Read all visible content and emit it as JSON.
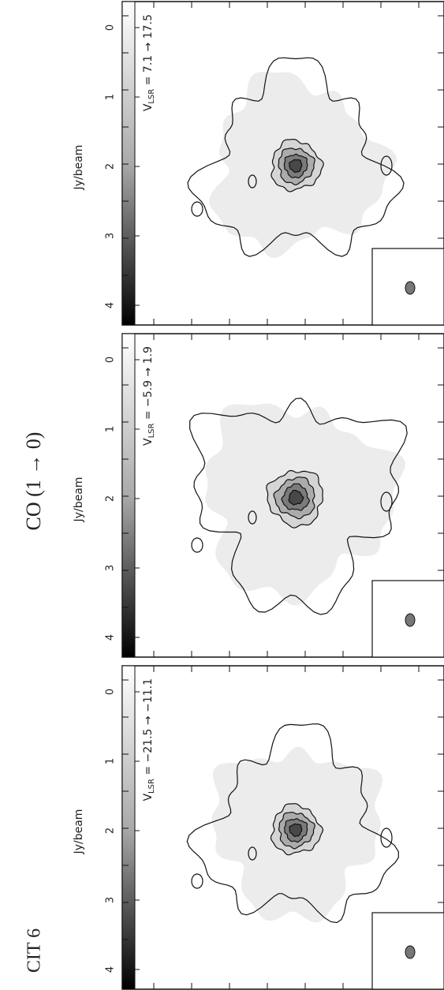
{
  "title": "CO (1 → 0)",
  "source": "CIT 6",
  "panels": [
    {
      "colorbar_label": "Jy/beam",
      "colorbar_ticks": [
        "0",
        "1",
        "2",
        "3",
        "4"
      ],
      "velocity": {
        "symbol": "V",
        "subscript": "LSR",
        "range": " = 7.1 → 17.5"
      }
    },
    {
      "colorbar_label": "Jy/beam",
      "colorbar_ticks": [
        "0",
        "1",
        "2",
        "3",
        "4"
      ],
      "velocity": {
        "symbol": "V",
        "subscript": "LSR",
        "range": " = −5.9 → 1.9"
      }
    },
    {
      "colorbar_label": "Jy/beam",
      "colorbar_ticks": [
        "0",
        "1",
        "2",
        "3",
        "4"
      ],
      "velocity": {
        "symbol": "V",
        "subscript": "LSR",
        "range": " = −21.5 → −11.1"
      }
    }
  ]
}
